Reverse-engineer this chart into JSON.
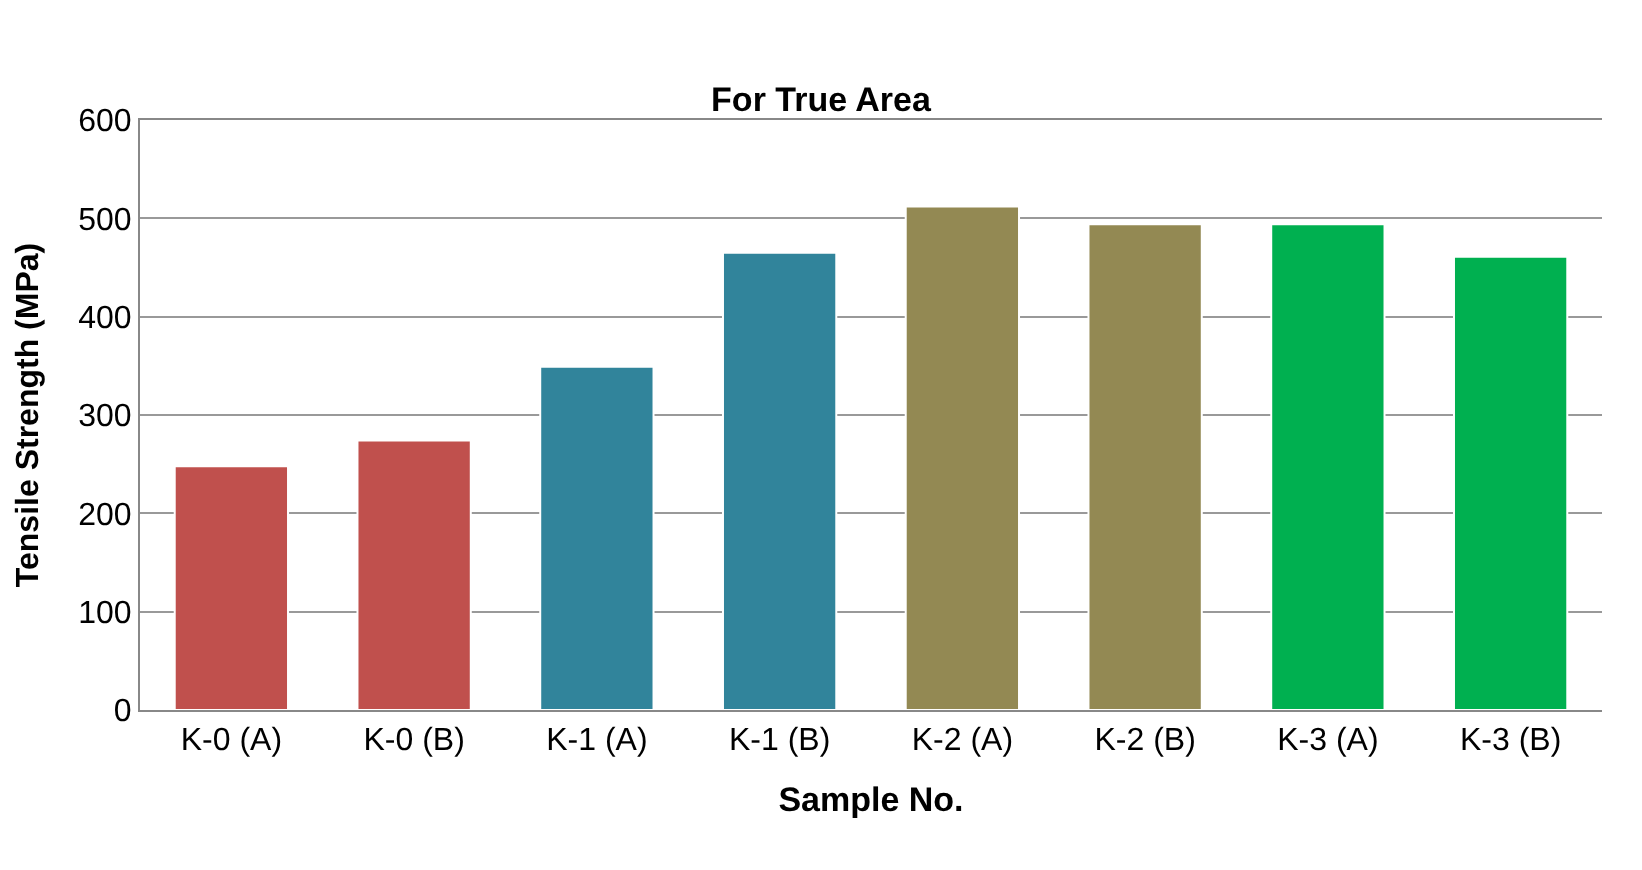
{
  "chart_data": {
    "type": "bar",
    "title": "For True Area",
    "xlabel": "Sample No.",
    "ylabel": "Tensile Strength (MPa)",
    "categories": [
      "K-0 (A)",
      "K-0 (B)",
      "K-1 (A)",
      "K-1 (B)",
      "K-2 (A)",
      "K-2 (B)",
      "K-3 (A)",
      "K-3 (B)"
    ],
    "values": [
      248,
      274,
      349,
      465,
      512,
      494,
      494,
      461
    ],
    "colors": [
      "#c0504d",
      "#c0504d",
      "#31849b",
      "#31849b",
      "#938953",
      "#938953",
      "#00b050",
      "#00b050"
    ],
    "ylim": [
      0,
      600
    ],
    "yticks": [
      0,
      100,
      200,
      300,
      400,
      500,
      600
    ],
    "grid": "y"
  }
}
